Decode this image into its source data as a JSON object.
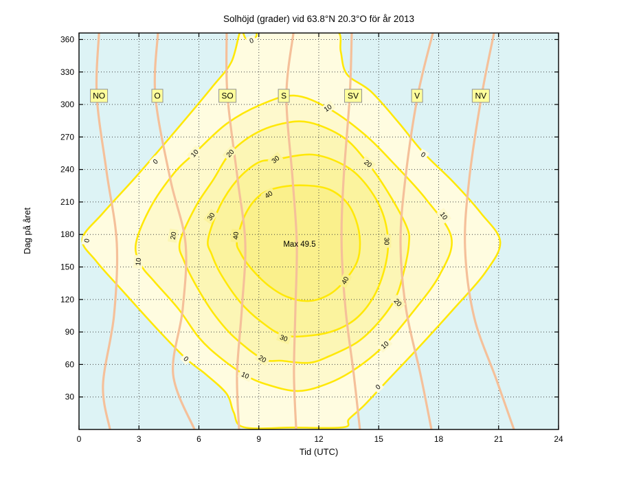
{
  "chart_data": {
    "type": "contour",
    "title": "Solhöjd (grader) vid 63.8°N 20.3°O för år 2013",
    "xlabel": "Tid (UTC)",
    "ylabel": "Dag på året",
    "x_ticks": [
      0,
      3,
      6,
      9,
      12,
      15,
      18,
      21,
      24
    ],
    "y_ticks": [
      30,
      60,
      90,
      120,
      150,
      180,
      210,
      240,
      270,
      300,
      330,
      360
    ],
    "x_range": [
      0,
      24
    ],
    "y_range": [
      0,
      366
    ],
    "grid": true,
    "levels": [
      0,
      10,
      20,
      30,
      40
    ],
    "max_label": {
      "text": "Max 49.5",
      "hour": 11.04,
      "day": 171
    },
    "colors": {
      "background_below_0": "#DDF3F5",
      "band_0_10": "#FFFCE0",
      "band_10_20": "#FEF9CD",
      "band_20_30": "#FCF6B5",
      "band_30_40": "#FBF39E",
      "band_40_plus": "#FAF08C",
      "contour_line": "#FFE808",
      "azimuth_line": "#F5C09A",
      "grid_line": "#404040",
      "compass_box_fill": "#FFFF9C",
      "compass_box_border": "#909090"
    },
    "contours": [
      {
        "level": 0,
        "closed": true,
        "points": [
          [
            0.17,
            175.7
          ],
          [
            1.2,
            199.8
          ],
          [
            2.92,
            234.7
          ],
          [
            4.99,
            279.1
          ],
          [
            6.71,
            317.1
          ],
          [
            7.63,
            339.3
          ],
          [
            8.08,
            368
          ],
          [
            8.32,
            361.5
          ],
          [
            8.6,
            359.6
          ],
          [
            8.87,
            362.8
          ],
          [
            9.11,
            368
          ],
          [
            11.0,
            368.6
          ],
          [
            12.89,
            368
          ],
          [
            13.1,
            348.8
          ],
          [
            13.41,
            327.9
          ],
          [
            14.61,
            312.0
          ],
          [
            15.99,
            283.5
          ],
          [
            17.23,
            255.6
          ],
          [
            18.74,
            228.3
          ],
          [
            20.11,
            199.8
          ],
          [
            21.08,
            173.2
          ],
          [
            20.32,
            144.6
          ],
          [
            18.74,
            111.0
          ],
          [
            17.02,
            76.1
          ],
          [
            15.3,
            42.5
          ],
          [
            14.27,
            22.2
          ],
          [
            13.51,
            9.5
          ],
          [
            13.24,
            2.0
          ],
          [
            10.7,
            1.8
          ],
          [
            8.25,
            2.0
          ],
          [
            7.74,
            15.9
          ],
          [
            7.39,
            33.0
          ],
          [
            6.36,
            50.7
          ],
          [
            5.36,
            65.3
          ],
          [
            3.95,
            92.0
          ],
          [
            2.24,
            126.8
          ],
          [
            0.86,
            155.4
          ]
        ]
      },
      {
        "level": 10,
        "closed": true,
        "points": [
          [
            2.85,
            171.9
          ],
          [
            3.61,
            206.1
          ],
          [
            4.81,
            237.8
          ],
          [
            5.78,
            254.9
          ],
          [
            7.39,
            282.2
          ],
          [
            9.11,
            299.9
          ],
          [
            10.76,
            308.2
          ],
          [
            12.45,
            296.8
          ],
          [
            14.27,
            272.7
          ],
          [
            15.82,
            244.2
          ],
          [
            17.37,
            212.5
          ],
          [
            18.64,
            176.9
          ],
          [
            18.05,
            142.7
          ],
          [
            16.68,
            107.8
          ],
          [
            15.3,
            78.0
          ],
          [
            13.93,
            57.1
          ],
          [
            12.55,
            43.1
          ],
          [
            11.0,
            35.5
          ],
          [
            9.46,
            41.2
          ],
          [
            8.32,
            50.1
          ],
          [
            7.05,
            66.6
          ],
          [
            6.02,
            84.4
          ],
          [
            4.99,
            111.0
          ],
          [
            3.78,
            136.4
          ],
          [
            3.09,
            152.2
          ]
        ]
      },
      {
        "level": 20,
        "closed": true,
        "points": [
          [
            5.05,
            173.2
          ],
          [
            5.85,
            206.1
          ],
          [
            6.71,
            230.2
          ],
          [
            7.56,
            254.9
          ],
          [
            8.77,
            272.7
          ],
          [
            10.14,
            282.2
          ],
          [
            11.52,
            283.5
          ],
          [
            13.24,
            269.6
          ],
          [
            14.47,
            245.5
          ],
          [
            15.47,
            218.8
          ],
          [
            16.4,
            187.1
          ],
          [
            16.51,
            171.3
          ],
          [
            16.26,
            145.9
          ],
          [
            15.82,
            120.5
          ],
          [
            14.96,
            98.3
          ],
          [
            13.93,
            80.6
          ],
          [
            12.55,
            67.9
          ],
          [
            11.52,
            61.5
          ],
          [
            10.14,
            63.4
          ],
          [
            9.18,
            65.3
          ],
          [
            7.74,
            85.6
          ],
          [
            6.71,
            107.8
          ],
          [
            5.85,
            133.2
          ],
          [
            5.26,
            155.4
          ]
        ]
      },
      {
        "level": 30,
        "closed": true,
        "points": [
          [
            6.46,
            175.7
          ],
          [
            7.05,
            206.1
          ],
          [
            7.91,
            230.2
          ],
          [
            8.94,
            246.1
          ],
          [
            9.83,
            249.2
          ],
          [
            11.69,
            253.7
          ],
          [
            13.24,
            244.2
          ],
          [
            14.27,
            228.3
          ],
          [
            15.13,
            202.9
          ],
          [
            15.47,
            174.4
          ],
          [
            15.3,
            149.0
          ],
          [
            14.78,
            123.7
          ],
          [
            13.93,
            103.4
          ],
          [
            12.89,
            92.0
          ],
          [
            11.69,
            86.9
          ],
          [
            10.25,
            86.9
          ],
          [
            9.11,
            99.6
          ],
          [
            8.08,
            117.3
          ],
          [
            7.12,
            142.7
          ],
          [
            6.64,
            161.7
          ]
        ]
      },
      {
        "level": 40,
        "closed": true,
        "points": [
          [
            7.91,
            174.4
          ],
          [
            8.36,
            199.8
          ],
          [
            9.11,
            216.9
          ],
          [
            10.14,
            223.9
          ],
          [
            11.45,
            225.2
          ],
          [
            12.55,
            221.4
          ],
          [
            13.41,
            209.3
          ],
          [
            13.86,
            193.4
          ],
          [
            14.06,
            174.4
          ],
          [
            13.93,
            155.4
          ],
          [
            13.31,
            137.6
          ],
          [
            12.55,
            124.9
          ],
          [
            11.52,
            118.6
          ],
          [
            10.42,
            122.4
          ],
          [
            9.46,
            133.2
          ],
          [
            8.6,
            149.0
          ],
          [
            8.08,
            163.0
          ]
        ]
      }
    ],
    "contour_labels": [
      {
        "value": "0",
        "hour": 8.63,
        "day": 359.0,
        "rotation": -20
      },
      {
        "value": "10",
        "hour": 12.45,
        "day": 296.8,
        "rotation": -35
      },
      {
        "value": "0",
        "hour": 3.82,
        "day": 247.4,
        "rotation": -45
      },
      {
        "value": "10",
        "hour": 5.78,
        "day": 255.0,
        "rotation": -48
      },
      {
        "value": "20",
        "hour": 7.56,
        "day": 255.0,
        "rotation": -48
      },
      {
        "value": "30",
        "hour": 9.83,
        "day": 249.2,
        "rotation": -40
      },
      {
        "value": "40",
        "hour": 9.49,
        "day": 216.9,
        "rotation": -35
      },
      {
        "value": "20",
        "hour": 14.47,
        "day": 245.5,
        "rotation": 40
      },
      {
        "value": "0",
        "hour": 17.23,
        "day": 253.7,
        "rotation": 35
      },
      {
        "value": "10",
        "hour": 18.26,
        "day": 197.3,
        "rotation": 55
      },
      {
        "value": "0",
        "hour": 0.38,
        "day": 174.4,
        "rotation": -80
      },
      {
        "value": "10",
        "hour": 2.96,
        "day": 154.8,
        "rotation": -85
      },
      {
        "value": "20",
        "hour": 4.71,
        "day": 178.9,
        "rotation": -80
      },
      {
        "value": "30",
        "hour": 6.6,
        "day": 196.6,
        "rotation": -55
      },
      {
        "value": "40",
        "hour": 7.84,
        "day": 178.9,
        "rotation": -85
      },
      {
        "value": "30",
        "hour": 15.4,
        "day": 173.8,
        "rotation": 90
      },
      {
        "value": "40",
        "hour": 13.31,
        "day": 137.6,
        "rotation": -62
      },
      {
        "value": "20",
        "hour": 15.96,
        "day": 117.3,
        "rotation": 48
      },
      {
        "value": "10",
        "hour": 15.3,
        "day": 78.0,
        "rotation": -42
      },
      {
        "value": "0",
        "hour": 14.96,
        "day": 39.3,
        "rotation": -42
      },
      {
        "value": "10",
        "hour": 8.32,
        "day": 50.1,
        "rotation": 25
      },
      {
        "value": "20",
        "hour": 9.18,
        "day": 65.3,
        "rotation": 32
      },
      {
        "value": "30",
        "hour": 10.25,
        "day": 84.4,
        "rotation": 20
      },
      {
        "value": "0",
        "hour": 5.36,
        "day": 65.3,
        "rotation": 45
      }
    ],
    "compass_labels": [
      {
        "text": "NO",
        "hour": 1.0,
        "day": 308
      },
      {
        "text": "O",
        "hour": 3.92,
        "day": 308
      },
      {
        "text": "SO",
        "hour": 7.43,
        "day": 308
      },
      {
        "text": "S",
        "hour": 10.25,
        "day": 308
      },
      {
        "text": "SV",
        "hour": 13.72,
        "day": 308
      },
      {
        "text": "V",
        "hour": 16.92,
        "day": 308
      },
      {
        "text": "NV",
        "hour": 20.11,
        "day": 308
      }
    ],
    "azimuth_lines": [
      {
        "label": "NO",
        "points": [
          [
            1.0,
            366
          ],
          [
            0.89,
            308
          ],
          [
            1.38,
            238
          ],
          [
            1.89,
            172
          ],
          [
            1.75,
            105
          ],
          [
            1.2,
            41
          ],
          [
            1.55,
            0
          ]
        ]
      },
      {
        "label": "O",
        "points": [
          [
            3.95,
            366
          ],
          [
            3.82,
            308
          ],
          [
            4.57,
            231
          ],
          [
            5.33,
            172
          ],
          [
            5.19,
            111
          ],
          [
            4.71,
            51
          ],
          [
            5.78,
            0
          ]
        ]
      },
      {
        "label": "SO",
        "points": [
          [
            7.39,
            366
          ],
          [
            7.43,
            308
          ],
          [
            7.94,
            231
          ],
          [
            8.32,
            172
          ],
          [
            8.15,
            111
          ],
          [
            7.91,
            51
          ],
          [
            8.01,
            0
          ]
        ]
      },
      {
        "label": "S",
        "points": [
          [
            10.73,
            366
          ],
          [
            10.38,
            308
          ],
          [
            10.69,
            231
          ],
          [
            10.9,
            172
          ],
          [
            10.83,
            111
          ],
          [
            10.76,
            51
          ],
          [
            10.87,
            0
          ]
        ]
      },
      {
        "label": "SV",
        "points": [
          [
            13.65,
            366
          ],
          [
            13.55,
            308
          ],
          [
            13.24,
            231
          ],
          [
            13.14,
            172
          ],
          [
            13.34,
            111
          ],
          [
            13.75,
            51
          ],
          [
            14.06,
            0
          ]
        ]
      },
      {
        "label": "V",
        "points": [
          [
            17.71,
            366
          ],
          [
            16.95,
            308
          ],
          [
            16.33,
            231
          ],
          [
            16.09,
            172
          ],
          [
            16.37,
            111
          ],
          [
            17.09,
            51
          ],
          [
            17.64,
            0
          ]
        ]
      },
      {
        "label": "NV",
        "points": [
          [
            20.77,
            366
          ],
          [
            20.15,
            308
          ],
          [
            19.53,
            231
          ],
          [
            19.32,
            168
          ],
          [
            19.77,
            104
          ],
          [
            20.87,
            47
          ],
          [
            21.77,
            0
          ]
        ]
      }
    ]
  }
}
